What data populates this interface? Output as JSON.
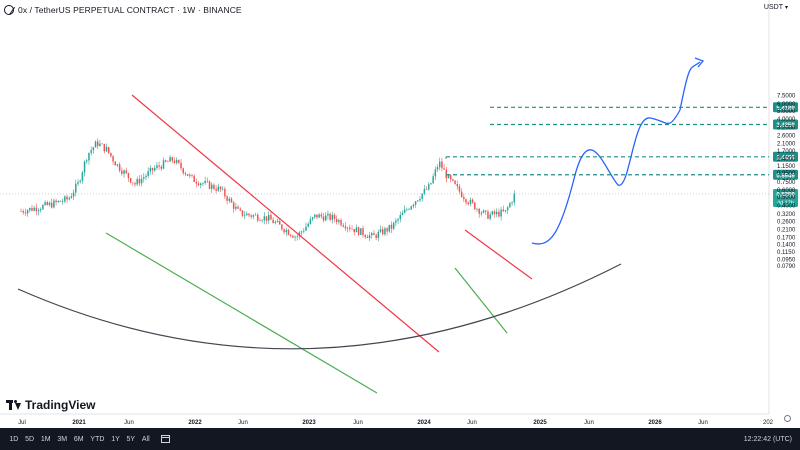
{
  "header": {
    "title": "0x / TetherUS PERPETUAL CONTRACT · 1W · BINANCE",
    "currency": "USDT"
  },
  "branding": {
    "name": "TradingView"
  },
  "bottom_bar": {
    "ranges": [
      "1D",
      "5D",
      "1M",
      "3M",
      "6M",
      "YTD",
      "1Y",
      "5Y",
      "All"
    ],
    "time": "12:22:42 (UTC)"
  },
  "colors": {
    "bull": "#26a69a",
    "bear": "#ef5350",
    "projection": "#2962ff",
    "target": "#1e8f86",
    "red_line": "#f23645",
    "green_line": "#4caf50",
    "bowl": "#434651",
    "price_label": "#26a69a",
    "countdown_label": "#26a69a"
  },
  "chart_data": {
    "type": "candlestick",
    "x_axis_labels": [
      "Jul",
      "2021",
      "Jun",
      "2022",
      "Jun",
      "2023",
      "Jun",
      "2024",
      "Jun",
      "2025",
      "Jun",
      "2026",
      "Jun",
      "202"
    ],
    "y_scale": "log",
    "y_axis_ticks": [
      "7.5000",
      "6.0000",
      "5.0000",
      "4.0000",
      "3.2000",
      "2.6000",
      "2.1000",
      "1.7000",
      "1.4000",
      "1.1500",
      "0.9500",
      "0.7500",
      "0.6000",
      "0.5000",
      "0.4000",
      "0.3200",
      "0.2600",
      "0.2100",
      "0.1700",
      "0.1400",
      "0.1150",
      "0.0950",
      "0.0790"
    ],
    "price_levels": [
      {
        "label": "5.4189",
        "value": 5.4189
      },
      {
        "label": "3.4259",
        "value": 3.4259
      },
      {
        "label": "1.4456",
        "value": 1.4456
      },
      {
        "label": "0.8949",
        "value": 0.8949
      }
    ],
    "current_price": {
      "label": "0.5359",
      "value": 0.5359
    },
    "bar_countdown": "4d 17h",
    "price_series": [
      {
        "date": "2020-07",
        "price": 0.34
      },
      {
        "date": "2020-10",
        "price": 0.4
      },
      {
        "date": "2020-12",
        "price": 0.47
      },
      {
        "date": "2021-01",
        "price": 0.7
      },
      {
        "date": "2021-02",
        "price": 1.55
      },
      {
        "date": "2021-03",
        "price": 2.1
      },
      {
        "date": "2021-04",
        "price": 1.75
      },
      {
        "date": "2021-05",
        "price": 1.2
      },
      {
        "date": "2021-07",
        "price": 0.7
      },
      {
        "date": "2021-09",
        "price": 1.05
      },
      {
        "date": "2021-11",
        "price": 1.35
      },
      {
        "date": "2022-01",
        "price": 0.8
      },
      {
        "date": "2022-04",
        "price": 0.6
      },
      {
        "date": "2022-06",
        "price": 0.32
      },
      {
        "date": "2022-09",
        "price": 0.28
      },
      {
        "date": "2022-12",
        "price": 0.17
      },
      {
        "date": "2023-02",
        "price": 0.3
      },
      {
        "date": "2023-04",
        "price": 0.28
      },
      {
        "date": "2023-06",
        "price": 0.21
      },
      {
        "date": "2023-08",
        "price": 0.17
      },
      {
        "date": "2023-10",
        "price": 0.22
      },
      {
        "date": "2023-12",
        "price": 0.4
      },
      {
        "date": "2024-02",
        "price": 0.65
      },
      {
        "date": "2024-03",
        "price": 1.25
      },
      {
        "date": "2024-04",
        "price": 0.8
      },
      {
        "date": "2024-06",
        "price": 0.45
      },
      {
        "date": "2024-08",
        "price": 0.3
      },
      {
        "date": "2024-10",
        "price": 0.33
      },
      {
        "date": "2024-11",
        "price": 0.5359
      }
    ],
    "projection": [
      {
        "date": "2024-12",
        "price": 0.5
      },
      {
        "date": "2025-03",
        "price": 1.35
      },
      {
        "date": "2025-06",
        "price": 1.05
      },
      {
        "date": "2025-09",
        "price": 2.3
      },
      {
        "date": "2025-12",
        "price": 2.45
      },
      {
        "date": "2026-03",
        "price": 4.9
      }
    ],
    "grid": false,
    "annotations": [
      "descending red trendlines",
      "descending green support lines",
      "rounded bottom arc",
      "dashed target levels"
    ]
  }
}
